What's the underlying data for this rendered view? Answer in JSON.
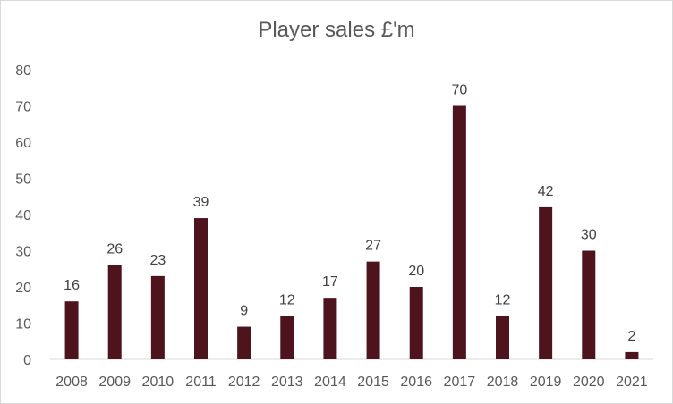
{
  "chart_data": {
    "type": "bar",
    "title": "Player sales £'m",
    "xlabel": "",
    "ylabel": "",
    "categories": [
      "2008",
      "2009",
      "2010",
      "2011",
      "2012",
      "2013",
      "2014",
      "2015",
      "2016",
      "2017",
      "2018",
      "2019",
      "2020",
      "2021"
    ],
    "values": [
      16,
      26,
      23,
      39,
      9,
      12,
      17,
      27,
      20,
      70,
      12,
      42,
      30,
      2
    ],
    "data_labels": [
      "16",
      "26",
      "23",
      "39",
      "9",
      "12",
      "17",
      "27",
      "20",
      "70",
      "12",
      "42",
      "30",
      "2"
    ],
    "ylim": [
      0,
      80
    ],
    "yticks": [
      "0",
      "10",
      "20",
      "30",
      "40",
      "50",
      "60",
      "70",
      "80"
    ],
    "grid": false,
    "legend": "none",
    "bar_color": "#4d141d"
  }
}
